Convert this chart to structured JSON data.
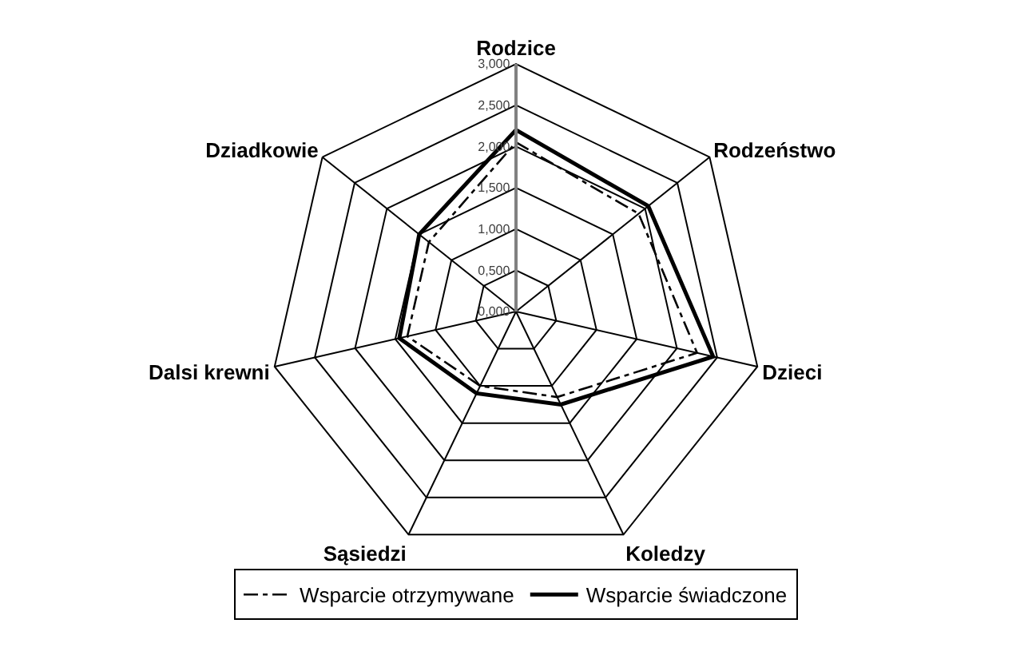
{
  "chart_data": {
    "type": "radar",
    "categories": [
      "Rodzice",
      "Rodzeństwo",
      "Dzieci",
      "Koledzy",
      "Sąsiedzi",
      "Dalsi krewni",
      "Dziadkowie"
    ],
    "series": [
      {
        "name": "Wsparcie otrzymywane",
        "color": "#000000",
        "line_style": "dashed",
        "values": [
          2.05,
          1.9,
          2.25,
          1.15,
          1.0,
          1.35,
          1.35
        ]
      },
      {
        "name": "Wsparcie świadczone",
        "color": "#000000",
        "line_style": "solid",
        "values": [
          2.2,
          2.05,
          2.45,
          1.25,
          1.1,
          1.45,
          1.5
        ]
      }
    ],
    "ylim": [
      0,
      3
    ],
    "yticks": [
      {
        "value": 0,
        "label": "0,000"
      },
      {
        "value": 0.5,
        "label": "0,500"
      },
      {
        "value": 1,
        "label": "1,000"
      },
      {
        "value": 1.5,
        "label": "1,500"
      },
      {
        "value": 2,
        "label": "2,000"
      },
      {
        "value": 2.5,
        "label": "2,500"
      },
      {
        "value": 3,
        "label": "3,000"
      }
    ],
    "grid": true,
    "legend": "bottom",
    "marker": "none"
  }
}
